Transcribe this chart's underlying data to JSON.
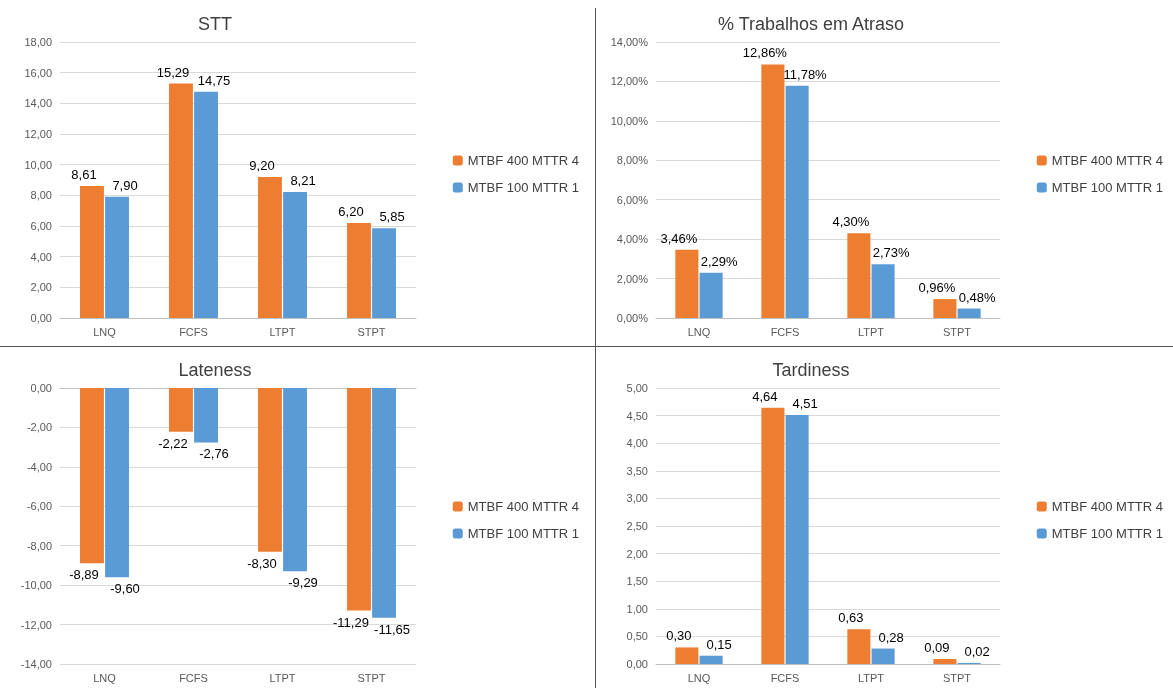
{
  "chart_data": [
    {
      "type": "bar",
      "title": "STT",
      "categories": [
        "LNQ",
        "FCFS",
        "LTPT",
        "STPT"
      ],
      "series": [
        {
          "name": "MTBF 400 MTTR 4",
          "color": "#ed7d31",
          "values": [
            8.61,
            15.29,
            9.2,
            6.2
          ],
          "value_labels": [
            "8,61",
            "15,29",
            "9,20",
            "6,20"
          ]
        },
        {
          "name": "MTBF 100 MTTR 1",
          "color": "#5b9bd5",
          "values": [
            7.9,
            14.75,
            8.21,
            5.85
          ],
          "value_labels": [
            "7,90",
            "14,75",
            "8,21",
            "5,85"
          ]
        }
      ],
      "ylim": [
        0,
        18
      ],
      "yticks": [
        {
          "value": 0,
          "label": "0,00"
        },
        {
          "value": 2,
          "label": "2,00"
        },
        {
          "value": 4,
          "label": "4,00"
        },
        {
          "value": 6,
          "label": "6,00"
        },
        {
          "value": 8,
          "label": "8,00"
        },
        {
          "value": 10,
          "label": "10,00"
        },
        {
          "value": 12,
          "label": "12,00"
        },
        {
          "value": 14,
          "label": "14,00"
        },
        {
          "value": 16,
          "label": "16,00"
        },
        {
          "value": 18,
          "label": "18,00"
        }
      ],
      "grid": "y",
      "legend": "right"
    },
    {
      "type": "bar",
      "title": "% Trabalhos em Atraso",
      "categories": [
        "LNQ",
        "FCFS",
        "LTPT",
        "STPT"
      ],
      "series": [
        {
          "name": "MTBF 400 MTTR 4",
          "color": "#ed7d31",
          "values": [
            3.46,
            12.86,
            4.3,
            0.96
          ],
          "value_labels": [
            "3,46%",
            "12,86%",
            "4,30%",
            "0,96%"
          ]
        },
        {
          "name": "MTBF 100 MTTR 1",
          "color": "#5b9bd5",
          "values": [
            2.29,
            11.78,
            2.73,
            0.48
          ],
          "value_labels": [
            "2,29%",
            "11,78%",
            "2,73%",
            "0,48%"
          ]
        }
      ],
      "ylim": [
        0,
        14
      ],
      "yticks": [
        {
          "value": 0,
          "label": "0,00%"
        },
        {
          "value": 2,
          "label": "2,00%"
        },
        {
          "value": 4,
          "label": "4,00%"
        },
        {
          "value": 6,
          "label": "6,00%"
        },
        {
          "value": 8,
          "label": "8,00%"
        },
        {
          "value": 10,
          "label": "10,00%"
        },
        {
          "value": 12,
          "label": "12,00%"
        },
        {
          "value": 14,
          "label": "14,00%"
        }
      ],
      "grid": "y",
      "legend": "right"
    },
    {
      "type": "bar",
      "title": "Lateness",
      "categories": [
        "LNQ",
        "FCFS",
        "LTPT",
        "STPT"
      ],
      "series": [
        {
          "name": "MTBF 400 MTTR 4",
          "color": "#ed7d31",
          "values": [
            -8.89,
            -2.22,
            -8.3,
            -11.29
          ],
          "value_labels": [
            "-8,89",
            "-2,22",
            "-8,30",
            "-11,29"
          ]
        },
        {
          "name": "MTBF 100 MTTR 1",
          "color": "#5b9bd5",
          "values": [
            -9.6,
            -2.76,
            -9.29,
            -11.65
          ],
          "value_labels": [
            "-9,60",
            "-2,76",
            "-9,29",
            "-11,65"
          ]
        }
      ],
      "ylim": [
        -14,
        0
      ],
      "yticks": [
        {
          "value": -14,
          "label": "-14,00"
        },
        {
          "value": -12,
          "label": "-12,00"
        },
        {
          "value": -10,
          "label": "-10,00"
        },
        {
          "value": -8,
          "label": "-8,00"
        },
        {
          "value": -6,
          "label": "-6,00"
        },
        {
          "value": -4,
          "label": "-4,00"
        },
        {
          "value": -2,
          "label": "-2,00"
        },
        {
          "value": 0,
          "label": "0,00"
        }
      ],
      "grid": "y",
      "legend": "right"
    },
    {
      "type": "bar",
      "title": "Tardiness",
      "categories": [
        "LNQ",
        "FCFS",
        "LTPT",
        "STPT"
      ],
      "series": [
        {
          "name": "MTBF 400 MTTR 4",
          "color": "#ed7d31",
          "values": [
            0.3,
            4.64,
            0.63,
            0.09
          ],
          "value_labels": [
            "0,30",
            "4,64",
            "0,63",
            "0,09"
          ]
        },
        {
          "name": "MTBF 100 MTTR 1",
          "color": "#5b9bd5",
          "values": [
            0.15,
            4.51,
            0.28,
            0.02
          ],
          "value_labels": [
            "0,15",
            "4,51",
            "0,28",
            "0,02"
          ]
        }
      ],
      "ylim": [
        0,
        5
      ],
      "yticks": [
        {
          "value": 0,
          "label": "0,00"
        },
        {
          "value": 0.5,
          "label": "0,50"
        },
        {
          "value": 1,
          "label": "1,00"
        },
        {
          "value": 1.5,
          "label": "1,50"
        },
        {
          "value": 2,
          "label": "2,00"
        },
        {
          "value": 2.5,
          "label": "2,50"
        },
        {
          "value": 3,
          "label": "3,00"
        },
        {
          "value": 3.5,
          "label": "3,50"
        },
        {
          "value": 4,
          "label": "4,00"
        },
        {
          "value": 4.5,
          "label": "4,50"
        },
        {
          "value": 5,
          "label": "5,00"
        }
      ],
      "grid": "y",
      "legend": "right"
    }
  ]
}
